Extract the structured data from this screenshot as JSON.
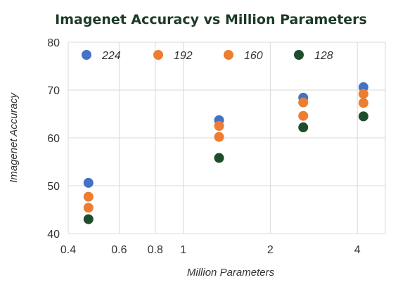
{
  "chart_data": {
    "type": "scatter",
    "title": "Imagenet Accuracy vs Million Parameters",
    "xlabel": "Million Parameters",
    "ylabel": "Imagenet Accuracy",
    "xscale": "log",
    "xlim": [
      0.4,
      5.0
    ],
    "ylim": [
      40,
      80
    ],
    "xticks": [
      0.4,
      0.6,
      0.8,
      1,
      2,
      4
    ],
    "xtick_labels": [
      "0.4",
      "0.6",
      "0.8",
      "1",
      "2",
      "4"
    ],
    "yticks": [
      40,
      50,
      60,
      70,
      80
    ],
    "ytick_labels": [
      "40",
      "50",
      "60",
      "70",
      "80"
    ],
    "grid": true,
    "legend_position": "top",
    "series": [
      {
        "name": "224",
        "color": "#4472c4",
        "points": [
          [
            0.47,
            50.6
          ],
          [
            1.33,
            63.7
          ],
          [
            2.6,
            68.4
          ],
          [
            4.2,
            70.6
          ]
        ]
      },
      {
        "name": "192",
        "color": "#ed7d31",
        "points": [
          [
            0.47,
            47.7
          ],
          [
            1.33,
            62.5
          ],
          [
            2.6,
            67.4
          ],
          [
            4.2,
            69.2
          ]
        ]
      },
      {
        "name": "160",
        "color": "#ed7d31",
        "points": [
          [
            0.47,
            45.4
          ],
          [
            1.33,
            60.2
          ],
          [
            2.6,
            64.6
          ],
          [
            4.2,
            67.3
          ]
        ]
      },
      {
        "name": "128",
        "color": "#1e4d2b",
        "points": [
          [
            0.47,
            43.0
          ],
          [
            1.33,
            55.8
          ],
          [
            2.6,
            62.2
          ],
          [
            4.2,
            64.5
          ]
        ]
      }
    ]
  }
}
